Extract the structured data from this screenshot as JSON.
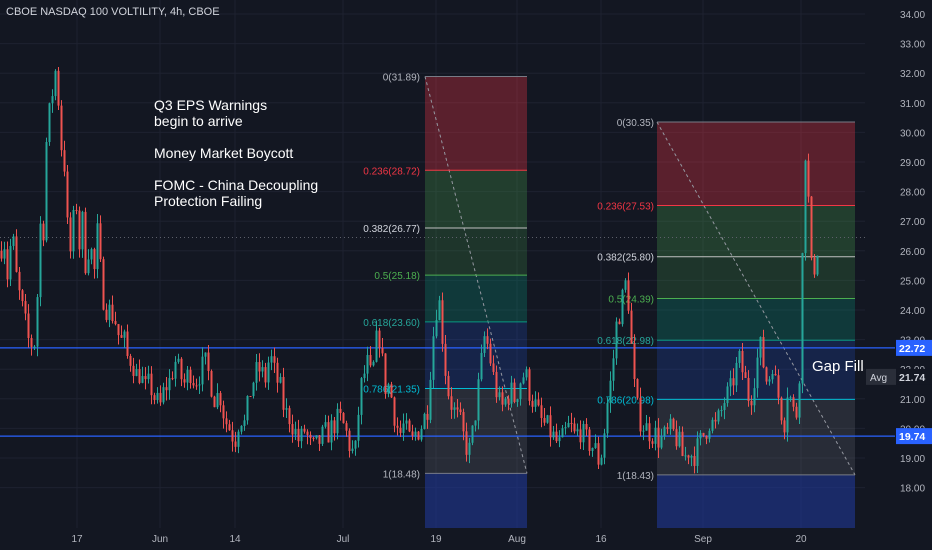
{
  "title": "CBOE NASDAQ 100 VOLTILITY, 4h, CBOE",
  "notes": [
    "Q3 EPS Warnings",
    "begin to arrive",
    "Money Market Boycott",
    "FOMC - China Decoupling",
    "Protection Failing"
  ],
  "gap_label": "Gap Fill",
  "colors": {
    "background": "#131722",
    "up": "#26a69a",
    "down": "#ef5350",
    "level_line": "#2962ff",
    "grid": "#1e2230",
    "axis_text": "#b2b5be"
  },
  "chart_data": {
    "type": "candlestick",
    "title": "CBOE NASDAQ 100 VOLTILITY, 4h, CBOE",
    "xlabel": "",
    "ylabel": "",
    "ylim": [
      17.3,
      34.3
    ],
    "y_ticks": [
      "18.00",
      "19.00",
      "20.00",
      "21.00",
      "22.00",
      "23.00",
      "24.00",
      "25.00",
      "26.00",
      "27.00",
      "28.00",
      "29.00",
      "30.00",
      "31.00",
      "32.00",
      "33.00",
      "34.00"
    ],
    "x_ticks": [
      "17",
      "Jun",
      "14",
      "Jul",
      "19",
      "Aug",
      "16",
      "Sep",
      "20"
    ],
    "price_tags": [
      {
        "value": 22.72,
        "label": "22.72",
        "style": "level"
      },
      {
        "value": 21.74,
        "label": "21.74",
        "style": "avg",
        "prefix": "Avg"
      },
      {
        "value": 19.74,
        "label": "19.74",
        "style": "level"
      }
    ],
    "horizontal_levels": [
      22.72,
      19.74
    ],
    "dotted_line": 26.45,
    "fib_retracements": [
      {
        "levels": [
          {
            "ratio": 0,
            "label": "0(31.89)",
            "value": 31.89
          },
          {
            "ratio": 0.236,
            "label": "0.236(28.72)",
            "value": 28.72
          },
          {
            "ratio": 0.382,
            "label": "0.382(26.77)",
            "value": 26.77
          },
          {
            "ratio": 0.5,
            "label": "0.5(25.18)",
            "value": 25.18
          },
          {
            "ratio": 0.618,
            "label": "0.618(23.60)",
            "value": 23.6
          },
          {
            "ratio": 0.786,
            "label": "0.786(21.35)",
            "value": 21.35
          },
          {
            "ratio": 1,
            "label": "1(18.48)",
            "value": 18.48
          }
        ]
      },
      {
        "levels": [
          {
            "ratio": 0,
            "label": "0(30.35)",
            "value": 30.35
          },
          {
            "ratio": 0.236,
            "label": "0.236(27.53)",
            "value": 27.53
          },
          {
            "ratio": 0.382,
            "label": "0.382(25.80)",
            "value": 25.8
          },
          {
            "ratio": 0.5,
            "label": "0.5(24.39)",
            "value": 24.39
          },
          {
            "ratio": 0.618,
            "label": "0.618(22.98)",
            "value": 22.98
          },
          {
            "ratio": 0.786,
            "label": "0.786(20.98)",
            "value": 20.98
          },
          {
            "ratio": 1,
            "label": "1(18.43)",
            "value": 18.43
          }
        ]
      }
    ],
    "price_path": [
      [
        0,
        26.0
      ],
      [
        4,
        26.5
      ],
      [
        8,
        25.0
      ],
      [
        12,
        26.8
      ],
      [
        16,
        25.2
      ],
      [
        20,
        24.4
      ],
      [
        24,
        23.8
      ],
      [
        28,
        23.0
      ],
      [
        31,
        22.9
      ],
      [
        34,
        22.7
      ],
      [
        37,
        24.0
      ],
      [
        40,
        27.0
      ],
      [
        43,
        26.2
      ],
      [
        46,
        29.5
      ],
      [
        49,
        30.5
      ],
      [
        52,
        31.2
      ],
      [
        55,
        32.2
      ],
      [
        58,
        31.4
      ],
      [
        61,
        29.6
      ],
      [
        64,
        29.3
      ],
      [
        67,
        27.0
      ],
      [
        70,
        25.8
      ],
      [
        73,
        26.8
      ],
      [
        76,
        27.9
      ],
      [
        79,
        26.0
      ],
      [
        82,
        27.2
      ],
      [
        86,
        25.4
      ],
      [
        90,
        26.5
      ],
      [
        94,
        25.0
      ],
      [
        97,
        26.8
      ],
      [
        100,
        25.5
      ],
      [
        104,
        24.3
      ],
      [
        108,
        24.0
      ],
      [
        112,
        23.9
      ],
      [
        116,
        23.6
      ],
      [
        120,
        22.9
      ],
      [
        124,
        23.0
      ],
      [
        128,
        22.3
      ],
      [
        132,
        22.4
      ],
      [
        136,
        21.8
      ],
      [
        140,
        21.9
      ],
      [
        145,
        21.3
      ],
      [
        150,
        21.5
      ],
      [
        155,
        21.0
      ],
      [
        160,
        20.7
      ],
      [
        165,
        21.4
      ],
      [
        170,
        21.6
      ],
      [
        175,
        22.3
      ],
      [
        180,
        21.8
      ],
      [
        185,
        21.5
      ],
      [
        190,
        22.0
      ],
      [
        195,
        21.6
      ],
      [
        200,
        21.9
      ],
      [
        205,
        22.2
      ],
      [
        210,
        21.7
      ],
      [
        215,
        21.0
      ],
      [
        220,
        21.2
      ],
      [
        225,
        20.3
      ],
      [
        230,
        20.0
      ],
      [
        235,
        19.6
      ],
      [
        240,
        20.5
      ],
      [
        245,
        20.1
      ],
      [
        250,
        21.2
      ],
      [
        255,
        21.8
      ],
      [
        260,
        22.0
      ],
      [
        265,
        21.6
      ],
      [
        270,
        22.5
      ],
      [
        275,
        21.8
      ],
      [
        280,
        21.4
      ],
      [
        285,
        20.5
      ],
      [
        290,
        20.4
      ],
      [
        295,
        19.9
      ],
      [
        300,
        19.5
      ],
      [
        305,
        20.0
      ],
      [
        310,
        19.4
      ],
      [
        315,
        19.3
      ],
      [
        320,
        19.6
      ],
      [
        325,
        19.8
      ],
      [
        330,
        19.9
      ],
      [
        335,
        20.2
      ],
      [
        340,
        20.3
      ],
      [
        345,
        20.0
      ],
      [
        350,
        19.4
      ],
      [
        355,
        19.0
      ],
      [
        360,
        21.2
      ],
      [
        364,
        21.8
      ],
      [
        368,
        22.2
      ],
      [
        372,
        21.5
      ],
      [
        375,
        22.6
      ],
      [
        378,
        23.2
      ],
      [
        381,
        23.0
      ],
      [
        384,
        21.4
      ],
      [
        388,
        21.5
      ],
      [
        392,
        21.0
      ],
      [
        396,
        20.2
      ],
      [
        400,
        19.8
      ],
      [
        404,
        20.1
      ],
      [
        408,
        19.7
      ],
      [
        412,
        19.5
      ],
      [
        416,
        19.9
      ],
      [
        420,
        20.0
      ],
      [
        424,
        20.3
      ],
      [
        428,
        20.8
      ],
      [
        432,
        22.8
      ],
      [
        435,
        23.6
      ],
      [
        438,
        24.6
      ],
      [
        441,
        23.8
      ],
      [
        444,
        22.5
      ],
      [
        447,
        21.5
      ],
      [
        450,
        21.0
      ],
      [
        455,
        20.5
      ],
      [
        460,
        20.2
      ],
      [
        465,
        19.5
      ],
      [
        470,
        19.2
      ],
      [
        475,
        20.4
      ],
      [
        480,
        21.8
      ],
      [
        485,
        23.2
      ],
      [
        489,
        22.6
      ],
      [
        493,
        21.8
      ],
      [
        497,
        21.2
      ],
      [
        501,
        20.6
      ],
      [
        505,
        20.9
      ],
      [
        510,
        21.3
      ],
      [
        515,
        21.0
      ],
      [
        520,
        21.6
      ],
      [
        525,
        21.9
      ],
      [
        530,
        21.2
      ],
      [
        535,
        20.8
      ],
      [
        540,
        20.3
      ],
      [
        545,
        20.1
      ],
      [
        550,
        19.9
      ],
      [
        555,
        19.6
      ],
      [
        560,
        19.4
      ],
      [
        565,
        19.8
      ],
      [
        570,
        20.1
      ],
      [
        575,
        19.7
      ],
      [
        580,
        20.0
      ],
      [
        585,
        19.6
      ],
      [
        590,
        19.5
      ],
      [
        595,
        19.3
      ],
      [
        600,
        18.8
      ],
      [
        604,
        19.8
      ],
      [
        608,
        21.0
      ],
      [
        612,
        21.8
      ],
      [
        616,
        23.4
      ],
      [
        620,
        24.0
      ],
      [
        624,
        24.6
      ],
      [
        627,
        25.1
      ],
      [
        630,
        23.5
      ],
      [
        634,
        21.5
      ],
      [
        638,
        20.5
      ],
      [
        642,
        20.2
      ],
      [
        646,
        20.0
      ],
      [
        650,
        19.9
      ],
      [
        655,
        19.8
      ],
      [
        660,
        19.6
      ],
      [
        665,
        19.7
      ],
      [
        670,
        19.9
      ],
      [
        675,
        19.8
      ],
      [
        680,
        19.4
      ],
      [
        684,
        18.9
      ],
      [
        688,
        19.3
      ],
      [
        692,
        19.1
      ],
      [
        696,
        19.2
      ],
      [
        700,
        19.5
      ],
      [
        705,
        19.9
      ],
      [
        710,
        20.3
      ],
      [
        715,
        20.0
      ],
      [
        720,
        20.4
      ],
      [
        725,
        21.0
      ],
      [
        730,
        21.2
      ],
      [
        735,
        21.9
      ],
      [
        740,
        22.3
      ],
      [
        745,
        21.6
      ],
      [
        750,
        20.9
      ],
      [
        755,
        21.9
      ],
      [
        760,
        22.8
      ],
      [
        764,
        22.1
      ],
      [
        768,
        21.4
      ],
      [
        772,
        22.4
      ],
      [
        776,
        21.4
      ],
      [
        780,
        20.9
      ],
      [
        784,
        20.1
      ],
      [
        788,
        21.5
      ],
      [
        792,
        20.7
      ],
      [
        796,
        20.3
      ],
      [
        800,
        22.2
      ],
      [
        803,
        26.5
      ],
      [
        806,
        30.0
      ],
      [
        809,
        27.2
      ],
      [
        812,
        25.0
      ],
      [
        815,
        25.6
      ],
      [
        818,
        26.2
      ]
    ]
  }
}
